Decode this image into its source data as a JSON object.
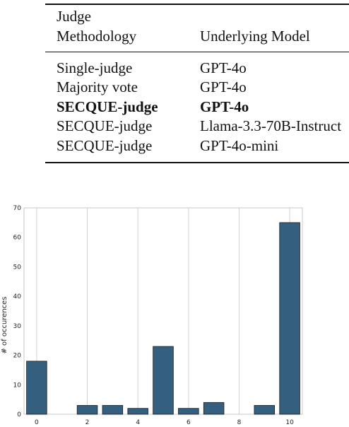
{
  "table": {
    "header": {
      "col1_line1": "Judge",
      "col1_line2": "Methodology",
      "col2": "Underlying Model"
    },
    "rows": [
      {
        "methodology": "Single-judge",
        "model": "GPT-4o",
        "bold": false
      },
      {
        "methodology": "Majority vote",
        "model": "GPT-4o",
        "bold": false
      },
      {
        "methodology": "SECQUE-judge",
        "model": "GPT-4o",
        "bold": true
      },
      {
        "methodology": "SECQUE-judge",
        "model": "Llama-3.3-70B-Instruct",
        "bold": false
      },
      {
        "methodology": "SECQUE-judge",
        "model": "GPT-4o-mini",
        "bold": false
      }
    ]
  },
  "chart_data": {
    "type": "bar",
    "title": "",
    "xlabel": "",
    "ylabel": "# of occurences",
    "x": [
      0,
      1,
      2,
      3,
      4,
      5,
      6,
      7,
      8,
      9,
      10
    ],
    "values": [
      18,
      0,
      3,
      3,
      2,
      23,
      2,
      4,
      0,
      3,
      65
    ],
    "x_ticks": [
      "0",
      "2",
      "4",
      "6",
      "8",
      "10"
    ],
    "y_ticks": [
      "0",
      "10",
      "20",
      "30",
      "40",
      "50",
      "60",
      "70"
    ],
    "ylim": [
      0,
      70
    ],
    "xlim": [
      -0.5,
      10.5
    ],
    "grid": "vertical",
    "bar_color": "#355f7f",
    "edge_color": "#1a1a1a"
  }
}
